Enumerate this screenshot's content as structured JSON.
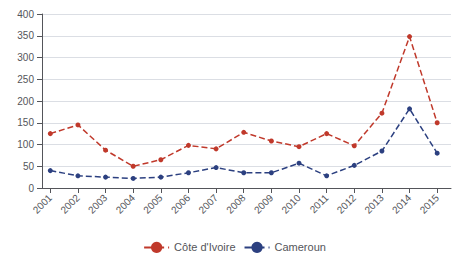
{
  "chart_data": {
    "type": "line",
    "x": [
      2001,
      2002,
      2003,
      2004,
      2005,
      2006,
      2007,
      2008,
      2009,
      2010,
      2011,
      2012,
      2013,
      2014,
      2015
    ],
    "series": [
      {
        "name": "Côte d'Ivoire",
        "color": "#c0392b",
        "values": [
          125,
          145,
          87,
          50,
          65,
          98,
          90,
          128,
          108,
          95,
          125,
          97,
          172,
          348,
          150
        ]
      },
      {
        "name": "Cameroun",
        "color": "#2c4080",
        "values": [
          40,
          28,
          25,
          22,
          25,
          35,
          47,
          35,
          35,
          57,
          28,
          52,
          85,
          182,
          80
        ]
      }
    ],
    "xlim": [
      2000.7,
      2015.5
    ],
    "xticks": [
      2001,
      2002,
      2003,
      2004,
      2005,
      2006,
      2007,
      2008,
      2009,
      2010,
      2011,
      2012,
      2013,
      2014,
      2015
    ],
    "ylim": [
      0,
      400
    ],
    "yticks": [
      0,
      50,
      100,
      150,
      200,
      250,
      300,
      350,
      400
    ],
    "grid": true,
    "legend": "bottom",
    "marker": "circle",
    "line_style": "dashed"
  }
}
